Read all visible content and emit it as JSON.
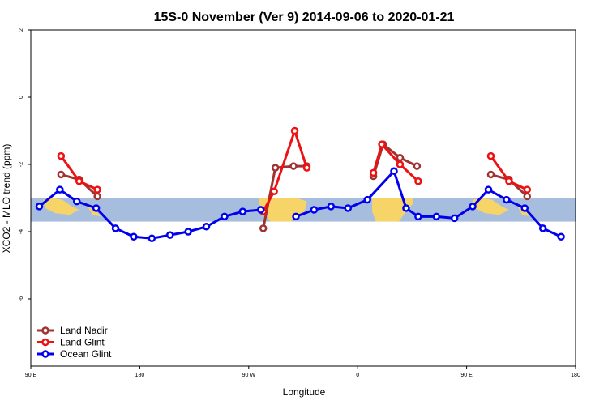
{
  "chart_data": {
    "type": "line",
    "title": "15S-0 November (Ver 9)   2014-09-06 to 2020-01-21",
    "xlabel": "Longitude",
    "ylabel": "XCO2 - MLO trend (ppm)",
    "xlim": [
      90,
      540
    ],
    "ylim": [
      -8,
      2
    ],
    "x_ticks": [
      {
        "value": 90,
        "label": "90 E"
      },
      {
        "value": 180,
        "label": "180"
      },
      {
        "value": 270,
        "label": "90 W"
      },
      {
        "value": 360,
        "label": "0"
      },
      {
        "value": 450,
        "label": "90 E"
      },
      {
        "value": 540,
        "label": "180"
      }
    ],
    "y_ticks": [
      {
        "value": 2,
        "label": "2"
      },
      {
        "value": 0,
        "label": "0"
      },
      {
        "value": -2,
        "label": "-2"
      },
      {
        "value": -4,
        "label": "-4"
      },
      {
        "value": -6,
        "label": "-6"
      }
    ],
    "band": {
      "y_range": [
        -3.7,
        -3.0
      ],
      "color": "#a6bddd",
      "land_color": "#f7d468"
    },
    "legend_position": "bottom-left",
    "grid": false,
    "series": [
      {
        "name": "Land Nadir",
        "color": "#a03232",
        "segments": [
          [
            [
              115,
              -2.3
            ],
            [
              130,
              -2.45
            ],
            [
              145,
              -2.95
            ]
          ],
          [
            [
              282,
              -3.9
            ],
            [
              292,
              -2.1
            ],
            [
              307,
              -2.05
            ],
            [
              318,
              -2.05
            ]
          ],
          [
            [
              373,
              -2.35
            ],
            [
              381,
              -1.4
            ],
            [
              395,
              -1.8
            ],
            [
              409,
              -2.05
            ]
          ],
          [
            [
              470,
              -2.3
            ],
            [
              485,
              -2.45
            ],
            [
              500,
              -2.95
            ]
          ]
        ]
      },
      {
        "name": "Land Glint",
        "color": "#ee1111",
        "segments": [
          [
            [
              115,
              -1.75
            ],
            [
              130,
              -2.5
            ],
            [
              145,
              -2.75
            ]
          ],
          [
            [
              282,
              -3.4
            ],
            [
              291,
              -2.8
            ],
            [
              308,
              -1.0
            ],
            [
              318,
              -2.1
            ]
          ],
          [
            [
              373,
              -2.25
            ],
            [
              380,
              -1.4
            ],
            [
              395,
              -2.0
            ],
            [
              410,
              -2.5
            ]
          ],
          [
            [
              470,
              -1.75
            ],
            [
              485,
              -2.5
            ],
            [
              500,
              -2.75
            ]
          ]
        ]
      },
      {
        "name": "Ocean Glint",
        "color": "#0000ee",
        "segments": [
          [
            [
              97,
              -3.25
            ],
            [
              114,
              -2.75
            ],
            [
              128,
              -3.1
            ],
            [
              144,
              -3.3
            ],
            [
              160,
              -3.9
            ],
            [
              175,
              -4.15
            ],
            [
              190,
              -4.2
            ],
            [
              205,
              -4.1
            ],
            [
              220,
              -4.0
            ],
            [
              235,
              -3.85
            ],
            [
              250,
              -3.55
            ],
            [
              265,
              -3.4
            ],
            [
              280,
              -3.35
            ]
          ],
          [
            [
              309,
              -3.55
            ],
            [
              324,
              -3.35
            ],
            [
              338,
              -3.25
            ],
            [
              352,
              -3.3
            ],
            [
              368,
              -3.05
            ],
            [
              390,
              -2.2
            ],
            [
              400,
              -3.3
            ],
            [
              410,
              -3.55
            ],
            [
              425,
              -3.55
            ],
            [
              440,
              -3.6
            ],
            [
              455,
              -3.25
            ],
            [
              468,
              -2.75
            ],
            [
              483,
              -3.05
            ],
            [
              498,
              -3.3
            ],
            [
              513,
              -3.9
            ],
            [
              528,
              -4.15
            ]
          ]
        ]
      }
    ]
  }
}
